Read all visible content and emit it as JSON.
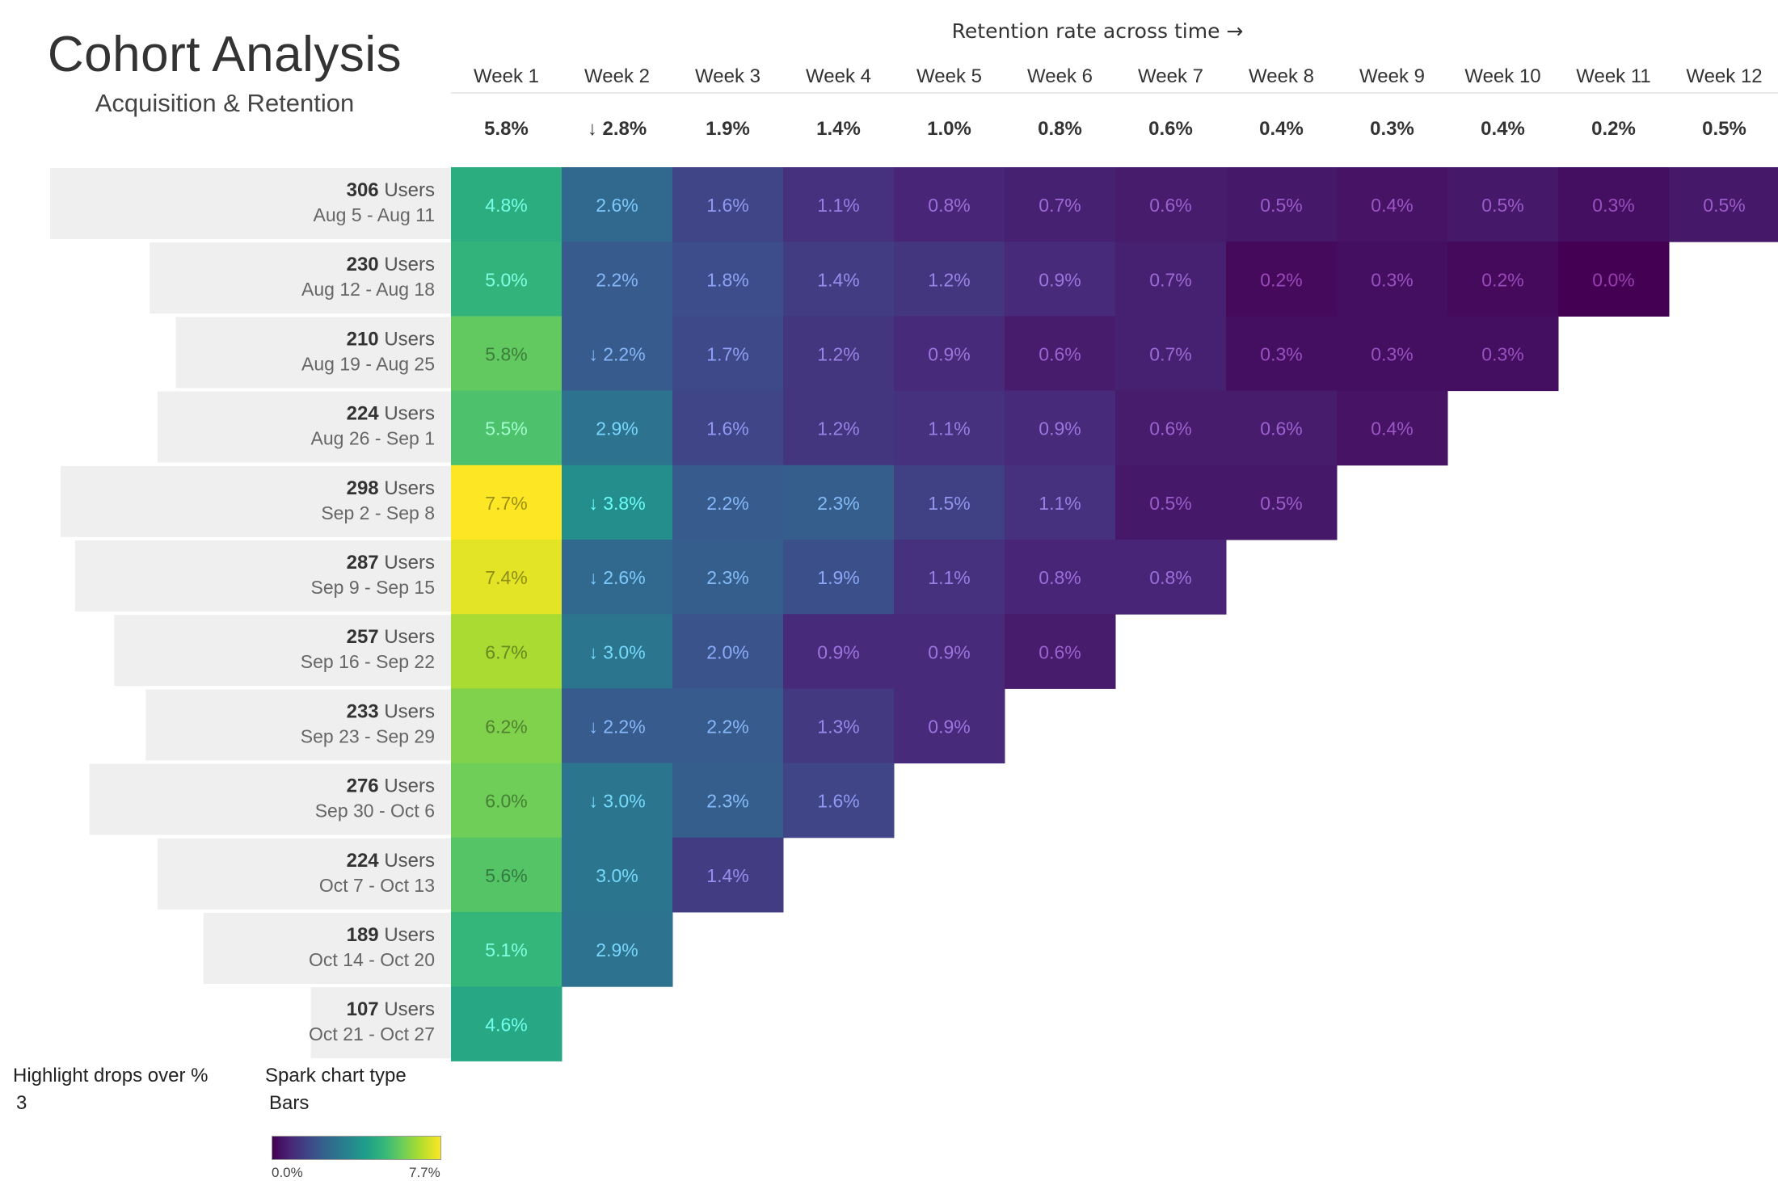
{
  "title": "Cohort Analysis",
  "subtitle": "Acquisition & Retention",
  "axis_caption": "Retention rate across time →",
  "controls": {
    "highlight_label": "Highlight drops over %",
    "highlight_value": "3",
    "spark_label": "Spark chart type",
    "spark_value": "Bars"
  },
  "colorbar": {
    "min_label": "0.0%",
    "max_label": "7.7%",
    "min": 0.0,
    "max": 7.7,
    "scale": "viridis"
  },
  "chart_data": {
    "type": "heatmap",
    "title": "Cohort Analysis",
    "subtitle": "Acquisition & Retention",
    "xlabel": "Retention rate across time →",
    "columns": [
      "Week 1",
      "Week 2",
      "Week 3",
      "Week 4",
      "Week 5",
      "Week 6",
      "Week 7",
      "Week 8",
      "Week 9",
      "Week 10",
      "Week 11",
      "Week 12"
    ],
    "column_averages": [
      5.8,
      2.8,
      1.9,
      1.4,
      1.0,
      0.8,
      0.6,
      0.4,
      0.3,
      0.4,
      0.2,
      0.5
    ],
    "column_average_drop_flags": [
      false,
      true,
      false,
      false,
      false,
      false,
      false,
      false,
      false,
      false,
      false,
      false
    ],
    "value_unit": "%",
    "color_range": [
      0.0,
      7.7
    ],
    "user_unit_label": "Users",
    "users_max": 306,
    "cohorts": [
      {
        "users": 306,
        "range": "Aug 5 - Aug 11",
        "values": [
          4.8,
          2.6,
          1.6,
          1.1,
          0.8,
          0.7,
          0.6,
          0.5,
          0.4,
          0.5,
          0.3,
          0.5
        ],
        "drop_flags": [
          false,
          false,
          false,
          false,
          false,
          false,
          false,
          false,
          false,
          false,
          false,
          false
        ]
      },
      {
        "users": 230,
        "range": "Aug 12 - Aug 18",
        "values": [
          5.0,
          2.2,
          1.8,
          1.4,
          1.2,
          0.9,
          0.7,
          0.2,
          0.3,
          0.2,
          0.0
        ],
        "drop_flags": [
          false,
          false,
          false,
          false,
          false,
          false,
          false,
          false,
          false,
          false,
          false
        ]
      },
      {
        "users": 210,
        "range": "Aug 19 - Aug 25",
        "values": [
          5.8,
          2.2,
          1.7,
          1.2,
          0.9,
          0.6,
          0.7,
          0.3,
          0.3,
          0.3
        ],
        "drop_flags": [
          false,
          true,
          false,
          false,
          false,
          false,
          false,
          false,
          false,
          false
        ]
      },
      {
        "users": 224,
        "range": "Aug 26 - Sep 1",
        "values": [
          5.5,
          2.9,
          1.6,
          1.2,
          1.1,
          0.9,
          0.6,
          0.6,
          0.4
        ],
        "drop_flags": [
          false,
          false,
          false,
          false,
          false,
          false,
          false,
          false,
          false
        ]
      },
      {
        "users": 298,
        "range": "Sep 2 - Sep 8",
        "values": [
          7.7,
          3.8,
          2.2,
          2.3,
          1.5,
          1.1,
          0.5,
          0.5
        ],
        "drop_flags": [
          false,
          true,
          false,
          false,
          false,
          false,
          false,
          false
        ]
      },
      {
        "users": 287,
        "range": "Sep 9 - Sep 15",
        "values": [
          7.4,
          2.6,
          2.3,
          1.9,
          1.1,
          0.8,
          0.8
        ],
        "drop_flags": [
          false,
          true,
          false,
          false,
          false,
          false,
          false
        ]
      },
      {
        "users": 257,
        "range": "Sep 16 - Sep 22",
        "values": [
          6.7,
          3.0,
          2.0,
          0.9,
          0.9,
          0.6
        ],
        "drop_flags": [
          false,
          true,
          false,
          false,
          false,
          false
        ]
      },
      {
        "users": 233,
        "range": "Sep 23 - Sep 29",
        "values": [
          6.2,
          2.2,
          2.2,
          1.3,
          0.9
        ],
        "drop_flags": [
          false,
          true,
          false,
          false,
          false
        ]
      },
      {
        "users": 276,
        "range": "Sep 30 - Oct 6",
        "values": [
          6.0,
          3.0,
          2.3,
          1.6
        ],
        "drop_flags": [
          false,
          true,
          false,
          false
        ]
      },
      {
        "users": 224,
        "range": "Oct 7 - Oct 13",
        "values": [
          5.6,
          3.0,
          1.4
        ],
        "drop_flags": [
          false,
          false,
          false
        ]
      },
      {
        "users": 189,
        "range": "Oct 14 - Oct 20",
        "values": [
          5.1,
          2.9
        ],
        "drop_flags": [
          false,
          false
        ]
      },
      {
        "users": 107,
        "range": "Oct 21 - Oct 27",
        "values": [
          4.6
        ],
        "drop_flags": [
          false
        ]
      }
    ]
  }
}
